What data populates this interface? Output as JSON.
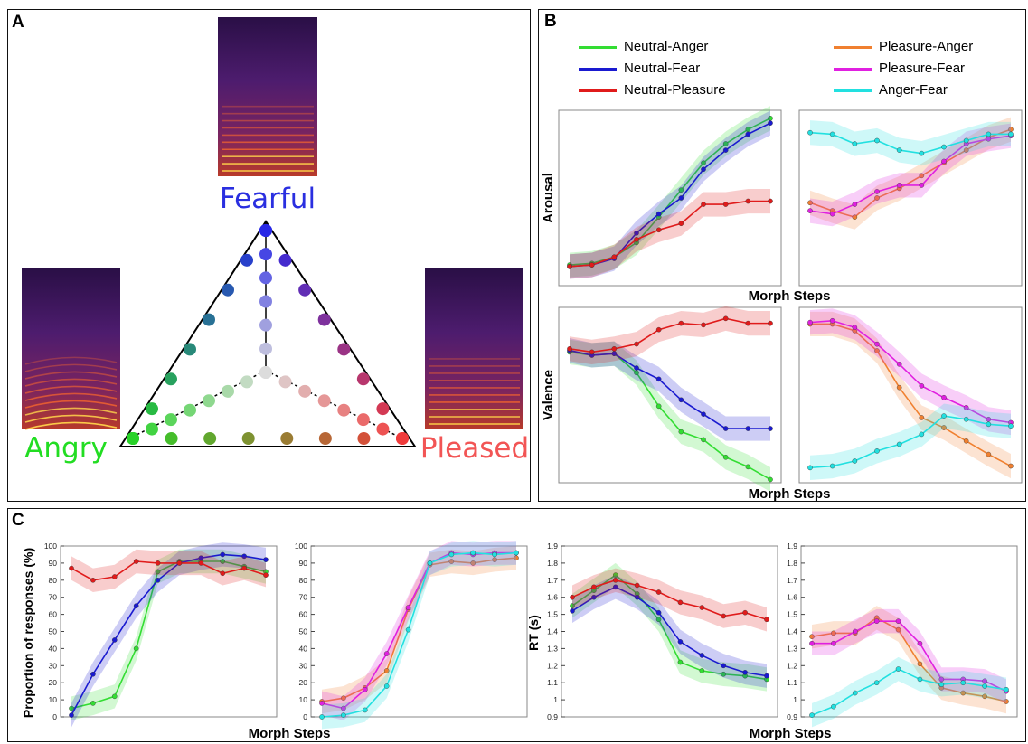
{
  "panel_labels": {
    "a": "A",
    "b": "B",
    "c": "C"
  },
  "panel_a": {
    "emotions": {
      "fearful": "Fearful",
      "angry": "Angry",
      "pleased": "Pleased"
    },
    "colors": {
      "fearful": "#2a2fe0",
      "angry": "#22dd22",
      "pleased": "#f25555"
    }
  },
  "legend": [
    {
      "label": "Neutral-Anger",
      "color": "#33dd33"
    },
    {
      "label": "Neutral-Fear",
      "color": "#1a1ad0"
    },
    {
      "label": "Neutral-Pleasure",
      "color": "#e01b1b"
    },
    {
      "label": "Pleasure-Anger",
      "color": "#f08030"
    },
    {
      "label": "Pleasure-Fear",
      "color": "#e020e0"
    },
    {
      "label": "Anger-Fear",
      "color": "#22e0e0"
    }
  ],
  "labels": {
    "arousal": "Arousal",
    "valence": "Valence",
    "morph_steps": "Morph Steps",
    "proportion": "Proportion of responses (%)",
    "rt": "RT (s)"
  },
  "chart_data": [
    {
      "id": "arousal_left",
      "type": "line",
      "xlabel": "",
      "ylabel": "Arousal",
      "x": [
        1,
        2,
        3,
        4,
        5,
        6,
        7,
        8,
        9,
        10
      ],
      "series": [
        {
          "name": "Neutral-Anger",
          "values": [
            0.08,
            0.09,
            0.13,
            0.22,
            0.38,
            0.55,
            0.72,
            0.84,
            0.93,
            1.0
          ]
        },
        {
          "name": "Neutral-Fear",
          "values": [
            0.07,
            0.08,
            0.12,
            0.28,
            0.4,
            0.5,
            0.68,
            0.8,
            0.9,
            0.97
          ]
        },
        {
          "name": "Neutral-Pleasure",
          "values": [
            0.07,
            0.08,
            0.13,
            0.24,
            0.3,
            0.34,
            0.46,
            0.46,
            0.48,
            0.48
          ]
        }
      ]
    },
    {
      "id": "arousal_right",
      "type": "line",
      "xlabel": "",
      "ylabel": "",
      "x": [
        1,
        2,
        3,
        4,
        5,
        6,
        7,
        8,
        9,
        10
      ],
      "series": [
        {
          "name": "Pleasure-Anger",
          "values": [
            0.47,
            0.42,
            0.38,
            0.5,
            0.56,
            0.64,
            0.72,
            0.8,
            0.88,
            0.93
          ]
        },
        {
          "name": "Pleasure-Fear",
          "values": [
            0.42,
            0.4,
            0.46,
            0.54,
            0.58,
            0.58,
            0.73,
            0.84,
            0.87,
            0.89
          ]
        },
        {
          "name": "Anger-Fear",
          "values": [
            0.91,
            0.9,
            0.84,
            0.86,
            0.8,
            0.78,
            0.82,
            0.86,
            0.9,
            0.9
          ]
        }
      ]
    },
    {
      "id": "valence_left",
      "type": "line",
      "xlabel": "Morph Steps",
      "ylabel": "Valence",
      "x": [
        1,
        2,
        3,
        4,
        5,
        6,
        7,
        8,
        9,
        10
      ],
      "series": [
        {
          "name": "Neutral-Anger",
          "values": [
            0.72,
            0.7,
            0.71,
            0.59,
            0.38,
            0.22,
            0.17,
            0.06,
            0.0,
            -0.08
          ]
        },
        {
          "name": "Neutral-Fear",
          "values": [
            0.73,
            0.7,
            0.71,
            0.62,
            0.55,
            0.42,
            0.33,
            0.24,
            0.24,
            0.24
          ]
        },
        {
          "name": "Neutral-Pleasure",
          "values": [
            0.74,
            0.72,
            0.74,
            0.77,
            0.86,
            0.9,
            0.89,
            0.93,
            0.9,
            0.9
          ]
        }
      ]
    },
    {
      "id": "valence_right",
      "type": "line",
      "xlabel": "",
      "ylabel": "",
      "x": [
        1,
        2,
        3,
        4,
        5,
        6,
        7,
        8,
        9,
        10
      ],
      "series": [
        {
          "name": "Pleasure-Anger",
          "values": [
            0.9,
            0.9,
            0.86,
            0.74,
            0.52,
            0.34,
            0.28,
            0.2,
            0.12,
            0.05
          ]
        },
        {
          "name": "Pleasure-Fear",
          "values": [
            0.91,
            0.92,
            0.88,
            0.78,
            0.66,
            0.53,
            0.46,
            0.4,
            0.33,
            0.31
          ]
        },
        {
          "name": "Anger-Fear",
          "values": [
            0.04,
            0.05,
            0.08,
            0.14,
            0.18,
            0.24,
            0.35,
            0.33,
            0.3,
            0.29
          ]
        }
      ]
    },
    {
      "id": "prop_left",
      "type": "line",
      "xlabel": "Morph Steps",
      "ylabel": "Proportion of responses (%)",
      "ylim": [
        0,
        100
      ],
      "yticks": [
        0,
        10,
        20,
        30,
        40,
        50,
        60,
        70,
        80,
        90,
        100
      ],
      "x": [
        1,
        2,
        3,
        4,
        5,
        6,
        7,
        8,
        9,
        10
      ],
      "series": [
        {
          "name": "Neutral-Anger",
          "values": [
            5,
            8,
            12,
            40,
            85,
            91,
            91,
            91,
            88,
            85
          ]
        },
        {
          "name": "Neutral-Fear",
          "values": [
            1,
            25,
            45,
            65,
            80,
            90,
            93,
            95,
            94,
            92
          ]
        },
        {
          "name": "Neutral-Pleasure",
          "values": [
            87,
            80,
            82,
            91,
            90,
            90,
            90,
            84,
            87,
            83
          ]
        }
      ]
    },
    {
      "id": "prop_right",
      "type": "line",
      "xlabel": "",
      "ylabel": "",
      "ylim": [
        0,
        100
      ],
      "yticks": [
        0,
        10,
        20,
        30,
        40,
        50,
        60,
        70,
        80,
        90,
        100
      ],
      "x": [
        1,
        2,
        3,
        4,
        5,
        6,
        7,
        8,
        9,
        10
      ],
      "series": [
        {
          "name": "Pleasure-Anger",
          "values": [
            9,
            11,
            17,
            27,
            63,
            89,
            91,
            90,
            92,
            93
          ]
        },
        {
          "name": "Pleasure-Fear",
          "values": [
            8,
            5,
            16,
            37,
            64,
            90,
            96,
            95,
            96,
            96
          ]
        },
        {
          "name": "Anger-Fear",
          "values": [
            0,
            1,
            4,
            18,
            51,
            90,
            95,
            96,
            95,
            96
          ]
        }
      ]
    },
    {
      "id": "rt_left",
      "type": "line",
      "xlabel": "Morph Steps",
      "ylabel": "RT (s)",
      "ylim": [
        0.9,
        1.9
      ],
      "yticks": [
        0.9,
        1,
        1.1,
        1.2,
        1.3,
        1.4,
        1.5,
        1.6,
        1.7,
        1.8,
        1.9
      ],
      "x": [
        1,
        2,
        3,
        4,
        5,
        6,
        7,
        8,
        9,
        10
      ],
      "series": [
        {
          "name": "Neutral-Anger",
          "values": [
            1.55,
            1.64,
            1.73,
            1.62,
            1.47,
            1.22,
            1.17,
            1.15,
            1.14,
            1.12
          ]
        },
        {
          "name": "Neutral-Fear",
          "values": [
            1.52,
            1.6,
            1.66,
            1.6,
            1.51,
            1.34,
            1.26,
            1.2,
            1.16,
            1.14
          ]
        },
        {
          "name": "Neutral-Pleasure",
          "values": [
            1.6,
            1.66,
            1.7,
            1.67,
            1.63,
            1.57,
            1.54,
            1.49,
            1.51,
            1.47
          ]
        }
      ]
    },
    {
      "id": "rt_right",
      "type": "line",
      "xlabel": "Morph Steps",
      "ylabel": "",
      "ylim": [
        0.9,
        1.9
      ],
      "yticks": [
        0.9,
        1,
        1.1,
        1.2,
        1.3,
        1.4,
        1.5,
        1.6,
        1.7,
        1.8,
        1.9
      ],
      "x": [
        1,
        2,
        3,
        4,
        5,
        6,
        7,
        8,
        9,
        10
      ],
      "series": [
        {
          "name": "Pleasure-Anger",
          "values": [
            1.37,
            1.39,
            1.39,
            1.48,
            1.41,
            1.21,
            1.07,
            1.04,
            1.02,
            0.99
          ]
        },
        {
          "name": "Pleasure-Fear",
          "values": [
            1.33,
            1.33,
            1.4,
            1.46,
            1.46,
            1.33,
            1.12,
            1.12,
            1.11,
            1.05
          ]
        },
        {
          "name": "Anger-Fear",
          "values": [
            0.91,
            0.96,
            1.04,
            1.1,
            1.18,
            1.12,
            1.09,
            1.1,
            1.08,
            1.06
          ]
        }
      ]
    }
  ]
}
